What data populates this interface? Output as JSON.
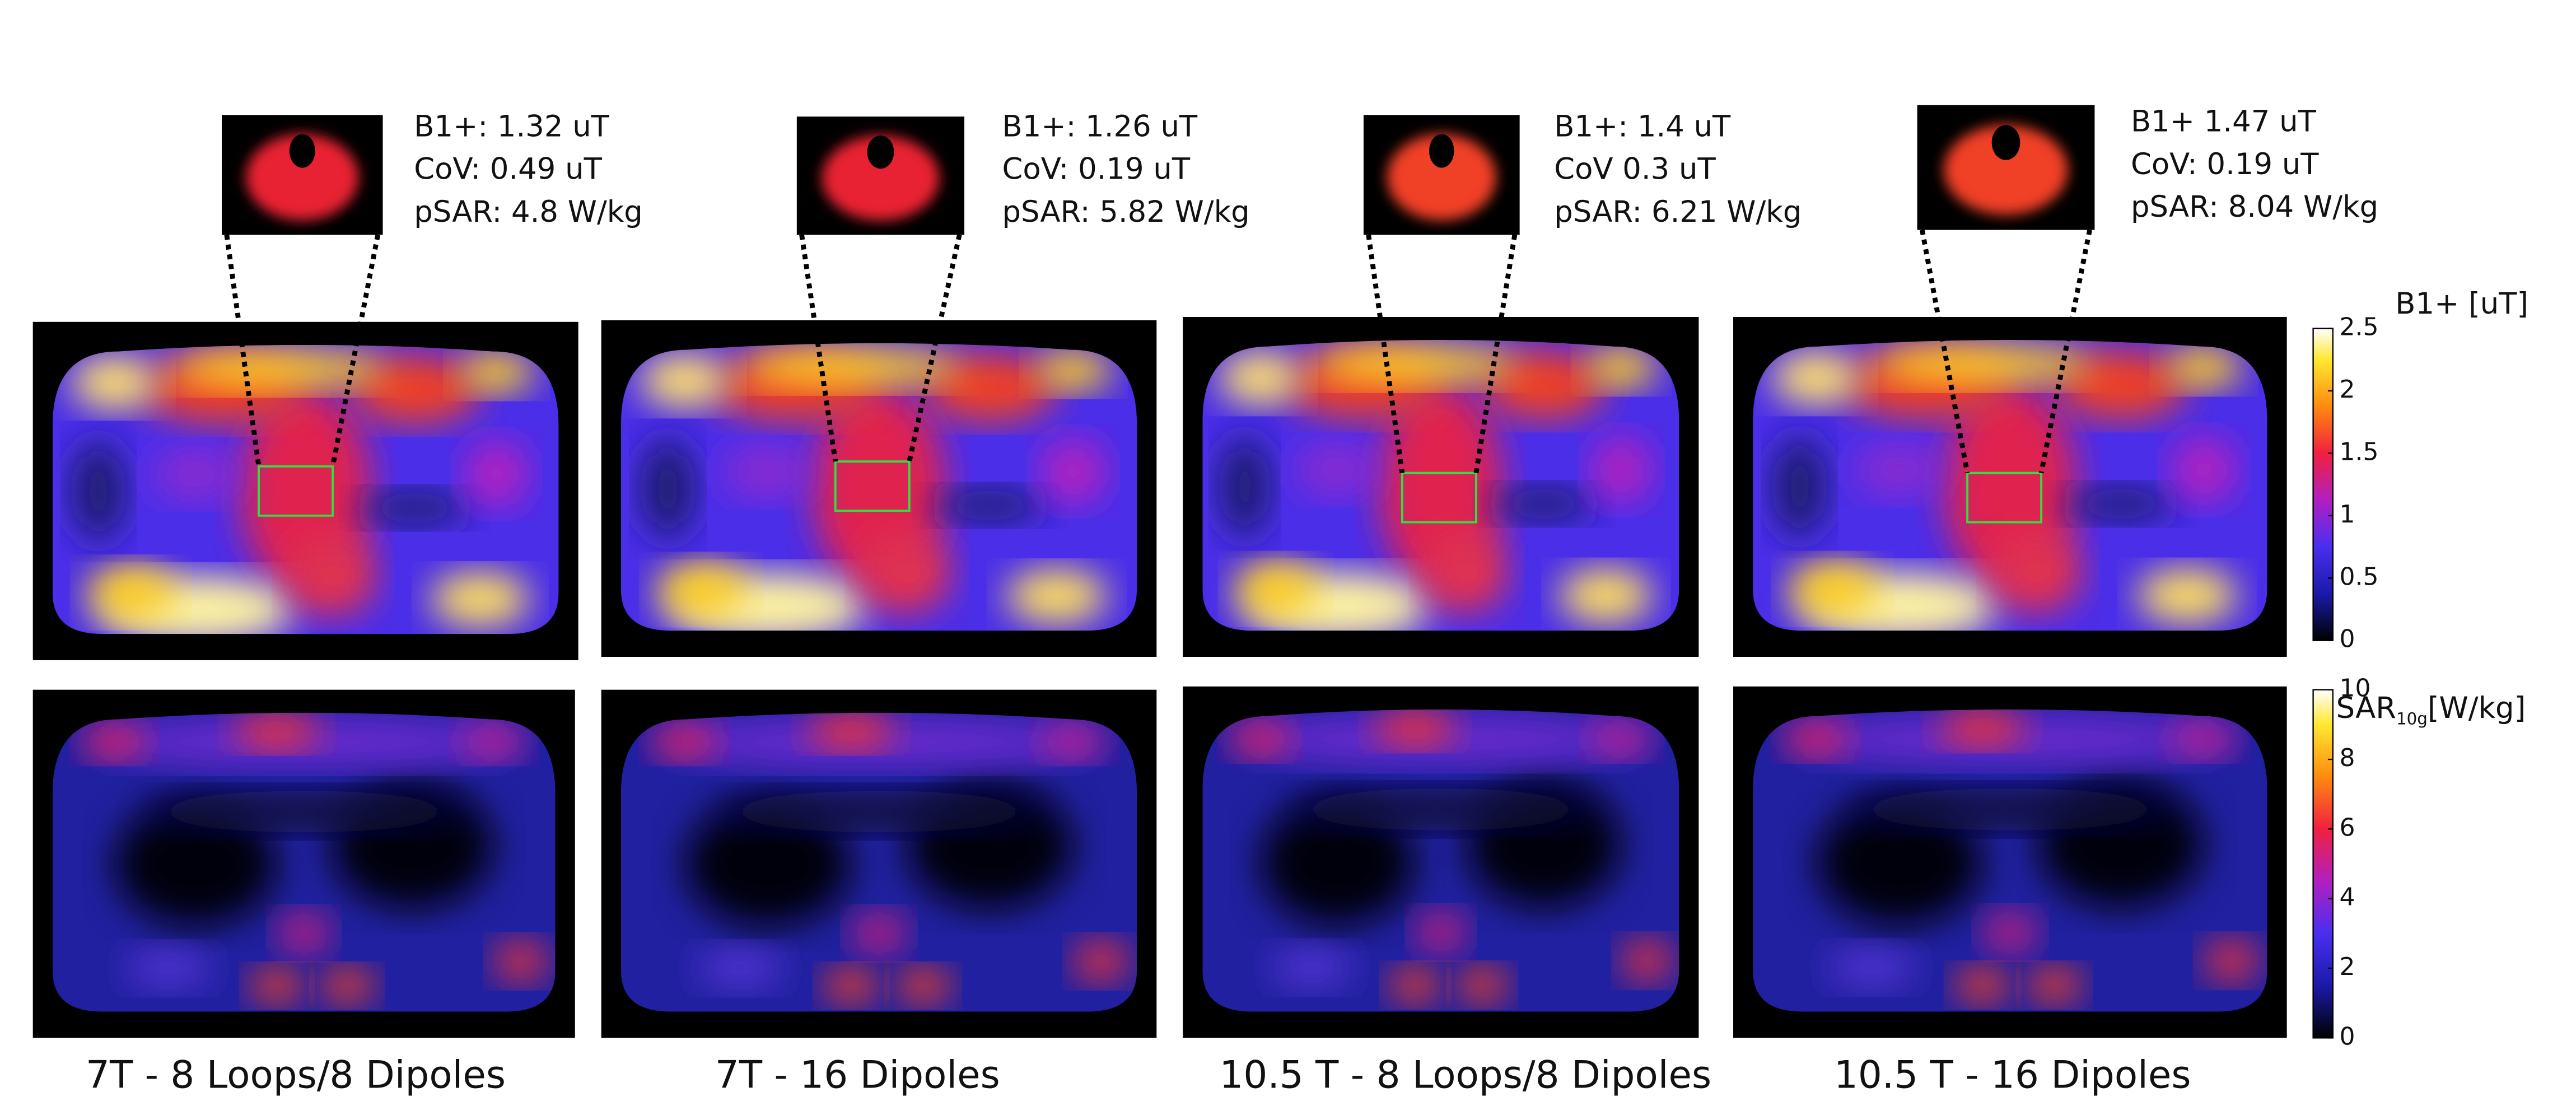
{
  "panels": [
    {
      "caption": "7T - 8 Loops/8 Dipoles",
      "stats": [
        "B1+: 1.32 uT",
        "CoV: 0.49 uT",
        "pSAR: 4.8 W/kg"
      ]
    },
    {
      "caption": "7T - 16 Dipoles",
      "stats": [
        "B1+: 1.26 uT",
        "CoV: 0.19 uT",
        "pSAR: 5.82 W/kg"
      ]
    },
    {
      "caption": "10.5 T - 8 Loops/8 Dipoles",
      "stats": [
        "B1+: 1.4 uT",
        "CoV 0.3 uT",
        "pSAR: 6.21 W/kg"
      ]
    },
    {
      "caption": "10.5 T - 16 Dipoles",
      "stats": [
        "B1+ 1.47 uT",
        "CoV: 0.19 uT",
        "pSAR: 8.04 W/kg"
      ]
    }
  ],
  "colorbars": [
    {
      "label": "B1+ [uT]",
      "lim": [
        0,
        2.5
      ],
      "ticks": [
        0,
        0.5,
        1,
        1.5,
        2,
        2.5
      ]
    },
    {
      "label": "SAR",
      "label_sub": "10g",
      "label_unit": "[W/kg]",
      "lim": [
        0,
        10
      ],
      "ticks": [
        0,
        2,
        4,
        6,
        8,
        10
      ]
    }
  ]
}
